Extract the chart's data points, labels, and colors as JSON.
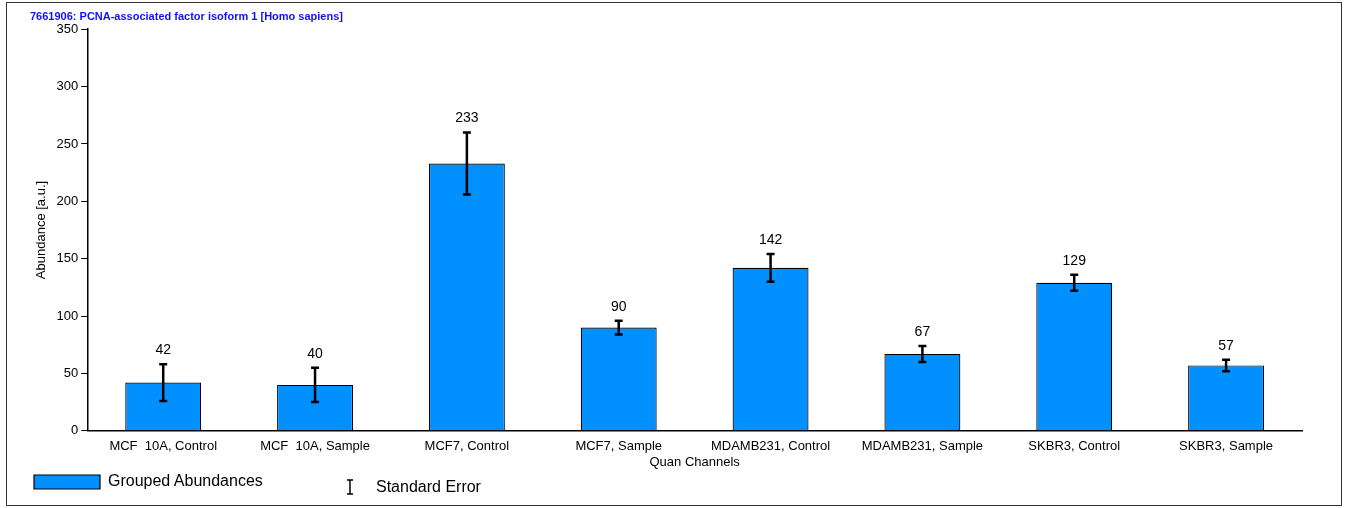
{
  "chart_data": {
    "type": "bar",
    "title": "7661906: PCNA-associated factor isoform 1 [Homo sapiens]",
    "xlabel": "Quan Channels",
    "ylabel": "Abundance [a.u.]",
    "categories": [
      "MCF  10A, Control",
      "MCF  10A, Sample",
      "MCF7, Control",
      "MCF7, Sample",
      "MDAMB231, Control",
      "MDAMB231, Sample",
      "SKBR3, Control",
      "SKBR3, Sample"
    ],
    "series": [
      {
        "name": "Grouped Abundances",
        "color": "#0090ff",
        "values": [
          42,
          40,
          233,
          90,
          142,
          67,
          129,
          57
        ],
        "errors": [
          16,
          15,
          27,
          6,
          12,
          7,
          7,
          5
        ]
      }
    ],
    "ylim": [
      0,
      350
    ],
    "yticks": [
      0,
      50,
      100,
      150,
      200,
      250,
      300,
      350
    ],
    "grid": false,
    "legend": "bottom left",
    "data_labels": true,
    "annotations": [
      "Standard Error"
    ]
  }
}
